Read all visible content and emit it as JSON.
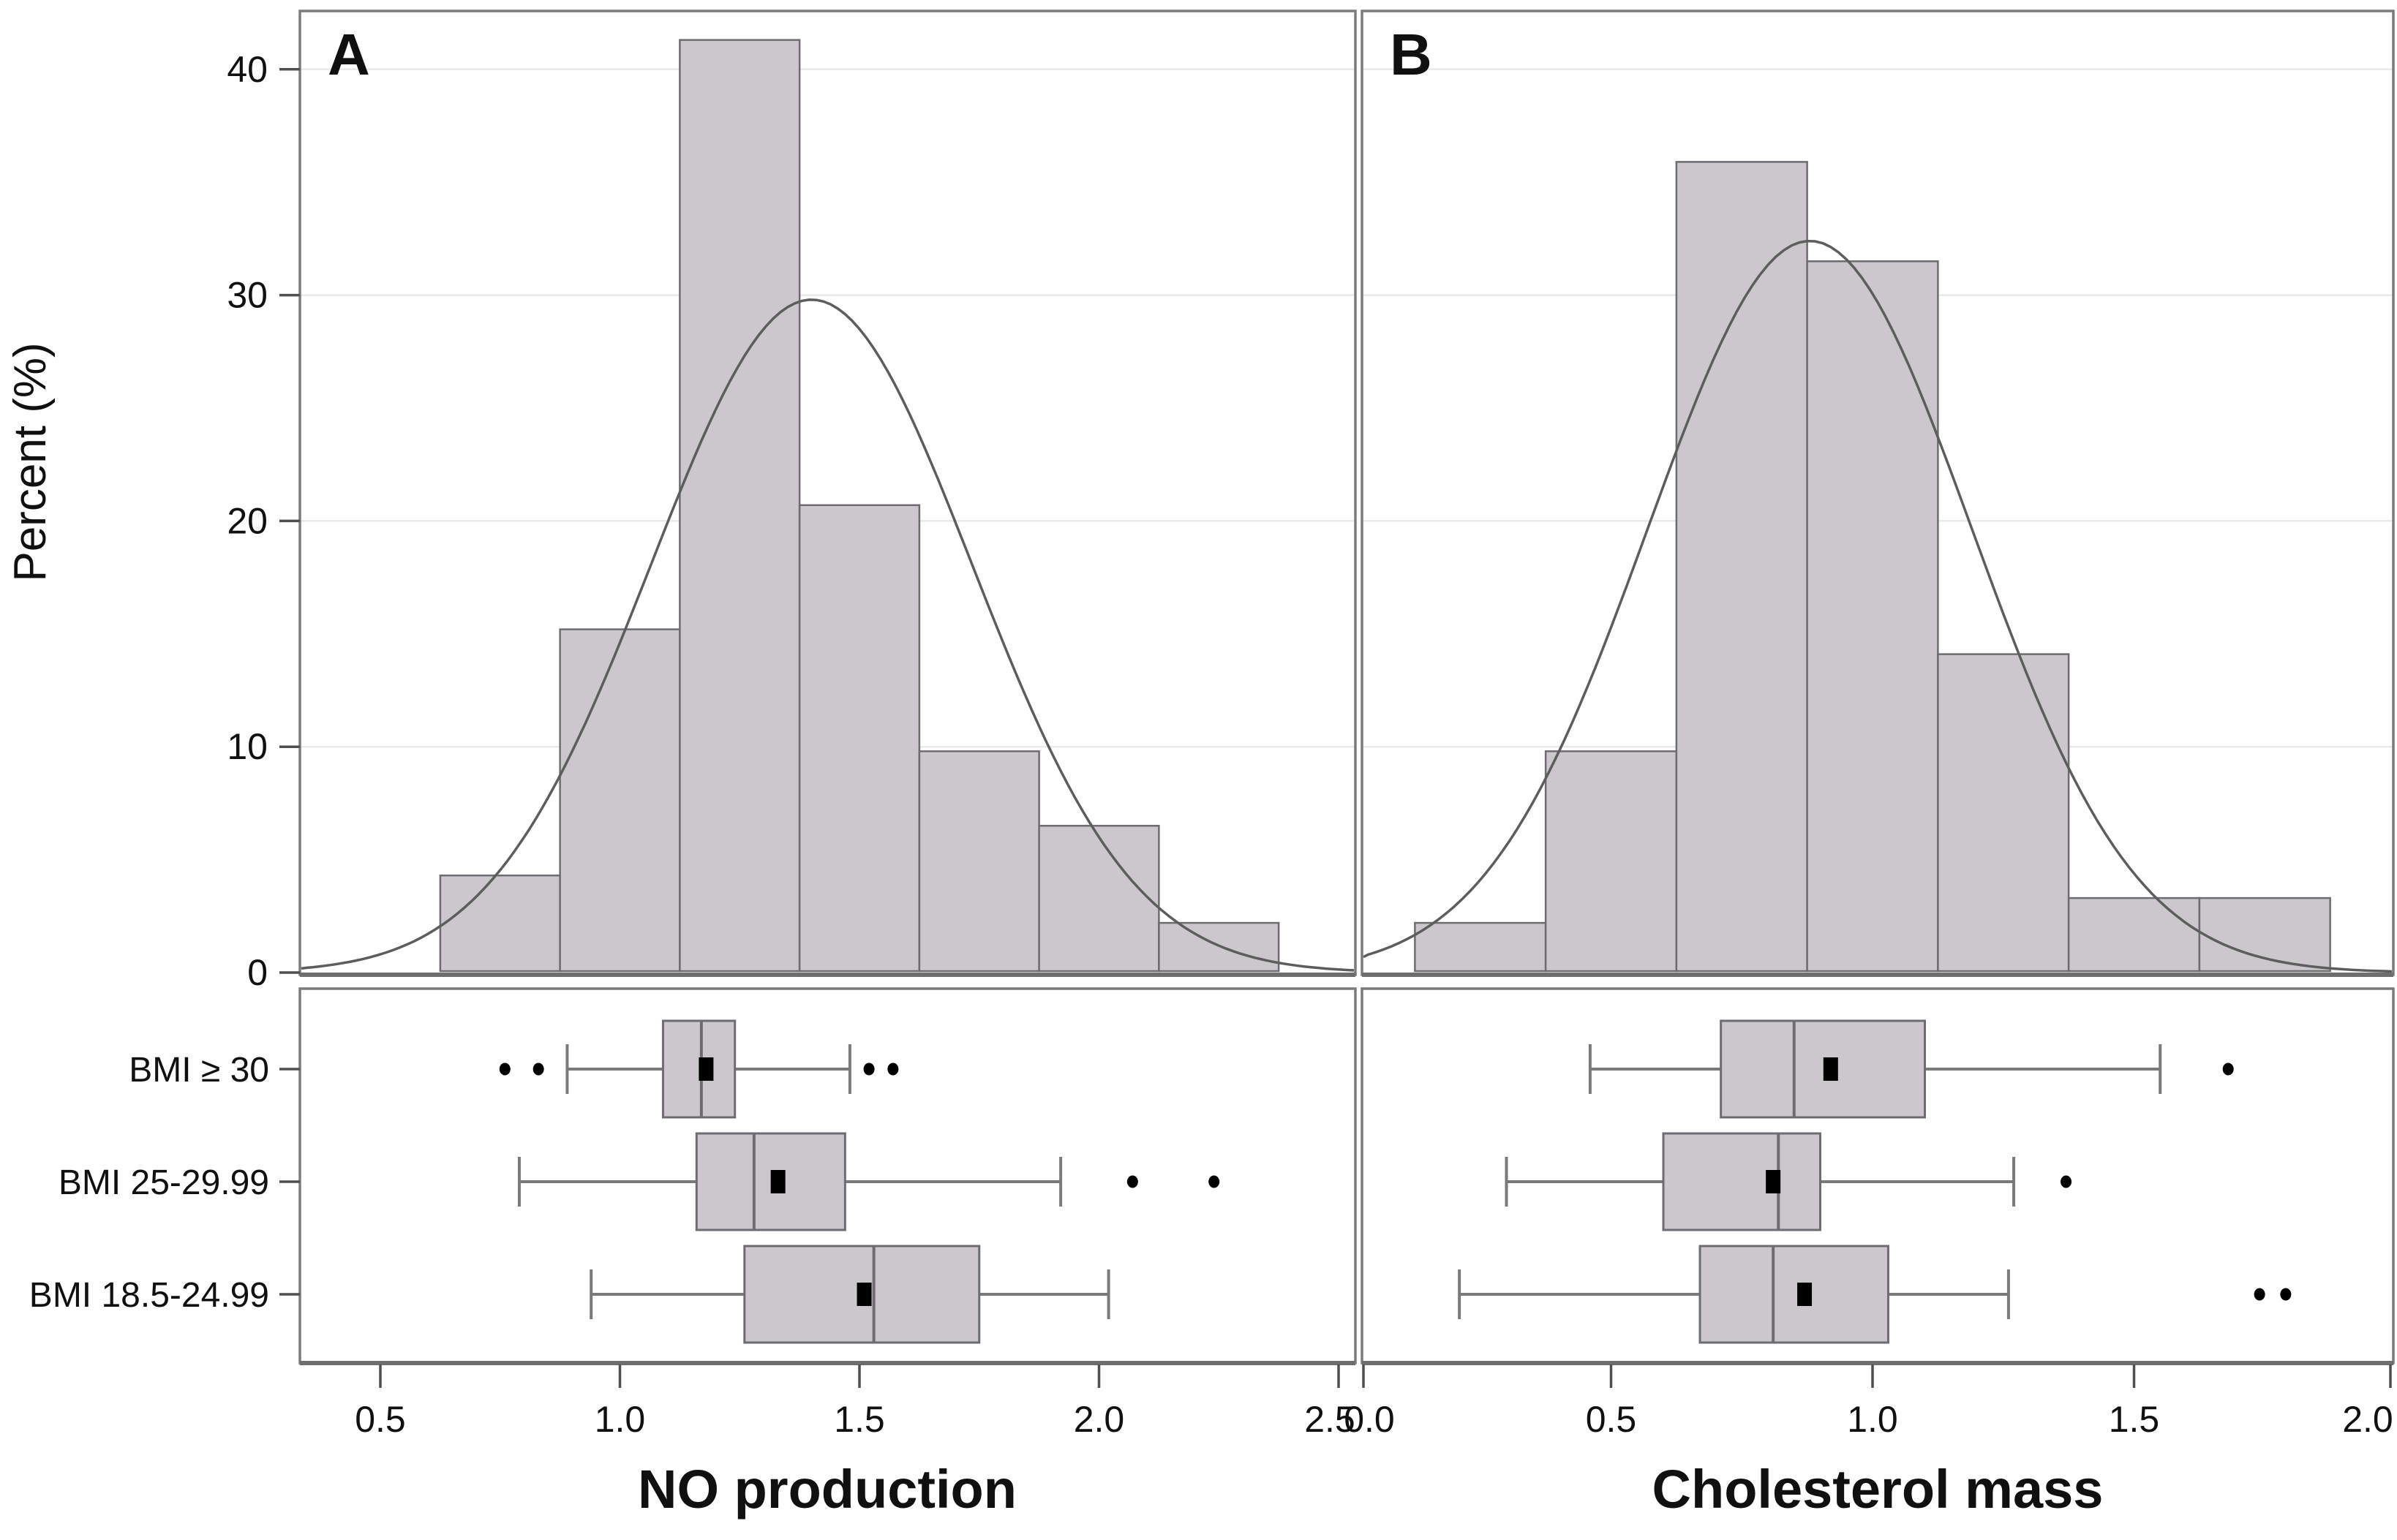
{
  "figure": {
    "panel_letters": {
      "a": "A",
      "b": "B"
    },
    "y_axis_title": "Percent (%)",
    "x_axis_titles": {
      "left": "NO production",
      "right": "Cholesterol mass"
    },
    "group_labels": [
      "BMI ≥ 30",
      "BMI 25-29.99",
      "BMI 18.5-24.99"
    ],
    "colors": {
      "bar_fill": "#cbc8cb",
      "bar_stroke": "#6e6c70",
      "curve": "#5d5d5d",
      "frame": "#7b7b7b",
      "baseline": "#6e6e6e",
      "grid": "#eaeaea",
      "tick": "#4f4f4f",
      "text": "#101010",
      "marker": "#000000"
    }
  },
  "chart_data": [
    {
      "type": "bar",
      "subtype": "histogram",
      "panel": "A",
      "ylabel": "Percent (%)",
      "xlabel": "NO production",
      "bin_width": 0.25,
      "bin_midpoints": [
        0.75,
        1.0,
        1.25,
        1.5,
        1.75,
        2.0,
        2.25
      ],
      "values_percent": [
        4.3,
        15.2,
        41.3,
        20.7,
        9.8,
        6.5,
        2.2
      ],
      "normal_curve": {
        "mean": 1.4,
        "sd": 0.335,
        "peak_percent": 29.8
      },
      "x_ticks": [
        0.5,
        1.0,
        1.5,
        2.0,
        2.5
      ],
      "x_tick_labels": [
        "0.5",
        "1.0",
        "1.5",
        "2.0",
        "2.5"
      ],
      "y_ticks": [
        0,
        10,
        20,
        30,
        40
      ],
      "y_tick_labels": [
        "0",
        "10",
        "20",
        "30",
        "40"
      ],
      "xlim": [
        0.33,
        2.54
      ],
      "ylim": [
        0,
        42.6
      ],
      "grid": true,
      "legend": false
    },
    {
      "type": "bar",
      "subtype": "histogram",
      "panel": "B",
      "ylabel": "Percent (%)",
      "xlabel": "Cholesterol mass",
      "bin_width": 0.25,
      "bin_midpoints": [
        0.25,
        0.5,
        0.75,
        1.0,
        1.25,
        1.5,
        1.75
      ],
      "values_percent": [
        2.2,
        9.8,
        35.9,
        31.5,
        14.1,
        3.3,
        3.3
      ],
      "normal_curve": {
        "mean": 0.88,
        "sd": 0.31,
        "peak_percent": 32.4
      },
      "x_ticks": [
        0.0,
        0.5,
        1.0,
        1.5,
        2.0
      ],
      "x_tick_labels": [
        "0.0",
        "0.5",
        "1.0",
        "1.5",
        "2.0"
      ],
      "y_ticks": [
        0,
        10,
        20,
        30,
        40
      ],
      "y_tick_labels": [
        "0",
        "10",
        "20",
        "30",
        "40"
      ],
      "xlim": [
        0.02,
        2.0
      ],
      "ylim": [
        0,
        42.6
      ],
      "grid": true,
      "legend": false
    },
    {
      "type": "boxplot",
      "panel": "A",
      "orientation": "horizontal",
      "xlabel": "NO production",
      "groups": [
        {
          "label": "BMI ≥ 30",
          "whisker_low": 0.89,
          "q1": 1.09,
          "median": 1.17,
          "mean": 1.18,
          "q3": 1.24,
          "whisker_high": 1.48,
          "outliers": [
            0.76,
            0.83,
            1.52,
            1.57
          ]
        },
        {
          "label": "BMI 25-29.99",
          "whisker_low": 0.79,
          "q1": 1.16,
          "median": 1.28,
          "mean": 1.33,
          "q3": 1.47,
          "whisker_high": 1.92,
          "outliers": [
            2.07,
            2.24
          ]
        },
        {
          "label": "BMI 18.5-24.99",
          "whisker_low": 0.94,
          "q1": 1.26,
          "median": 1.53,
          "mean": 1.51,
          "q3": 1.75,
          "whisker_high": 2.02,
          "outliers": []
        }
      ]
    },
    {
      "type": "boxplot",
      "panel": "B",
      "orientation": "horizontal",
      "xlabel": "Cholesterol mass",
      "groups": [
        {
          "label": "BMI ≥ 30",
          "whisker_low": 0.46,
          "q1": 0.71,
          "median": 0.85,
          "mean": 0.92,
          "q3": 1.1,
          "whisker_high": 1.55,
          "outliers": [
            1.68
          ]
        },
        {
          "label": "BMI 25-29.99",
          "whisker_low": 0.3,
          "q1": 0.6,
          "median": 0.82,
          "mean": 0.81,
          "q3": 0.9,
          "whisker_high": 1.27,
          "outliers": [
            1.37
          ]
        },
        {
          "label": "BMI 18.5-24.99",
          "whisker_low": 0.21,
          "q1": 0.67,
          "median": 0.81,
          "mean": 0.87,
          "q3": 1.03,
          "whisker_high": 1.26,
          "outliers": [
            1.74,
            1.79
          ]
        }
      ]
    }
  ]
}
